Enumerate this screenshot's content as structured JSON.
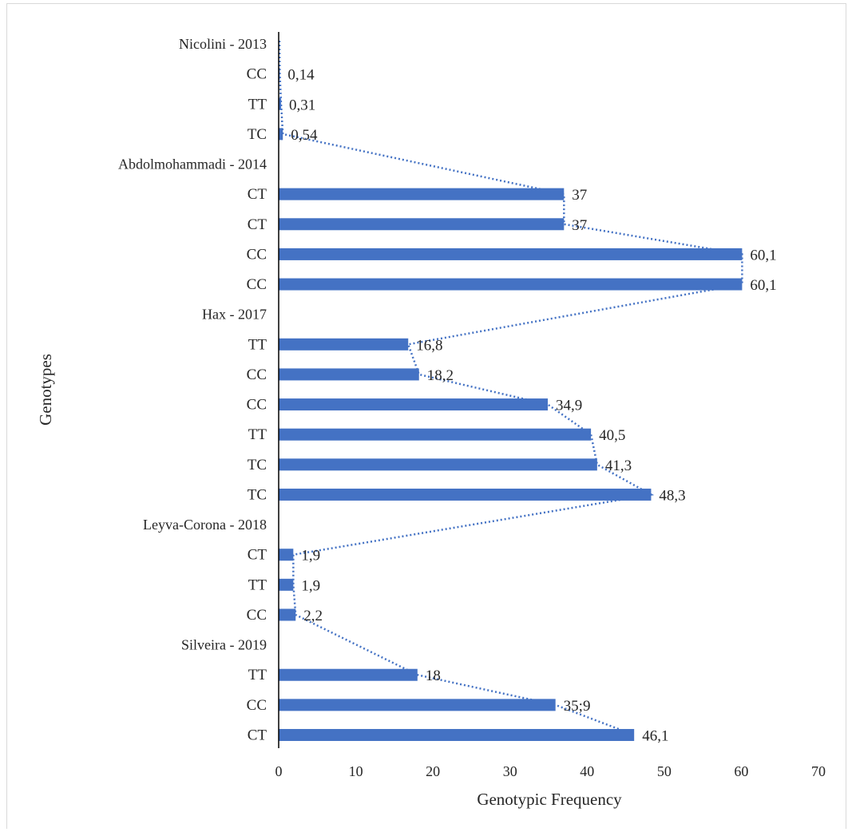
{
  "chart_data": {
    "type": "bar",
    "orientation": "horizontal",
    "xlabel": "Genotypic Frequency",
    "ylabel": "Genotypes",
    "xlim": [
      0,
      70
    ],
    "xticks": [
      "0",
      "10",
      "20",
      "30",
      "40",
      "50",
      "60",
      "70"
    ],
    "grid": false,
    "legend": "none",
    "bar_color": "#4472C4",
    "trendline": {
      "style": "dotted",
      "color": "#4472C4"
    },
    "rows": [
      {
        "kind": "group",
        "label": "Nicolini - 2013"
      },
      {
        "kind": "bar",
        "label": "CC",
        "value": 0.14,
        "value_label": "0,14"
      },
      {
        "kind": "bar",
        "label": "TT",
        "value": 0.31,
        "value_label": "0,31"
      },
      {
        "kind": "bar",
        "label": "TC",
        "value": 0.54,
        "value_label": "0,54"
      },
      {
        "kind": "group",
        "label": "Abdolmohammadi - 2014"
      },
      {
        "kind": "bar",
        "label": "CT",
        "value": 37,
        "value_label": "37"
      },
      {
        "kind": "bar",
        "label": "CT",
        "value": 37,
        "value_label": "37"
      },
      {
        "kind": "bar",
        "label": "CC",
        "value": 60.1,
        "value_label": "60,1"
      },
      {
        "kind": "bar",
        "label": "CC",
        "value": 60.1,
        "value_label": "60,1"
      },
      {
        "kind": "group",
        "label": "Hax - 2017"
      },
      {
        "kind": "bar",
        "label": "TT",
        "value": 16.8,
        "value_label": "16,8"
      },
      {
        "kind": "bar",
        "label": "CC",
        "value": 18.2,
        "value_label": "18,2"
      },
      {
        "kind": "bar",
        "label": "CC",
        "value": 34.9,
        "value_label": "34,9"
      },
      {
        "kind": "bar",
        "label": "TT",
        "value": 40.5,
        "value_label": "40,5"
      },
      {
        "kind": "bar",
        "label": "TC",
        "value": 41.3,
        "value_label": "41,3"
      },
      {
        "kind": "bar",
        "label": "TC",
        "value": 48.3,
        "value_label": "48,3"
      },
      {
        "kind": "group",
        "label": "Leyva-Corona - 2018"
      },
      {
        "kind": "bar",
        "label": "CT",
        "value": 1.9,
        "value_label": "1,9"
      },
      {
        "kind": "bar",
        "label": "TT",
        "value": 1.9,
        "value_label": "1,9"
      },
      {
        "kind": "bar",
        "label": "CC",
        "value": 2.2,
        "value_label": "2,2"
      },
      {
        "kind": "group",
        "label": "Silveira - 2019"
      },
      {
        "kind": "bar",
        "label": "TT",
        "value": 18,
        "value_label": "18"
      },
      {
        "kind": "bar",
        "label": "CC",
        "value": 35.9,
        "value_label": "35;9"
      },
      {
        "kind": "bar",
        "label": "CT",
        "value": 46.1,
        "value_label": "46,1"
      }
    ]
  }
}
